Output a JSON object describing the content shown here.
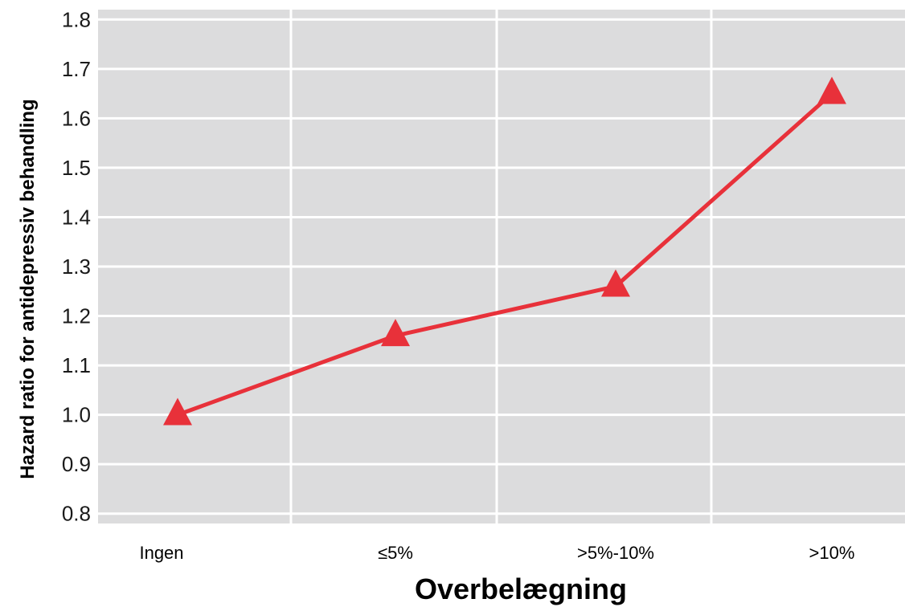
{
  "chart_data": {
    "type": "line",
    "title": "",
    "xlabel": "Overbelægning",
    "ylabel": "Hazard ratio for antidepressiv behandling",
    "categories": [
      "Ingen",
      "≤5%",
      ">5%-10%",
      ">10%"
    ],
    "series": [
      {
        "values": [
          1.0,
          1.16,
          1.26,
          1.65
        ],
        "color": "#e8313a",
        "marker": "triangle"
      }
    ],
    "ylim": [
      0.78,
      1.82
    ],
    "yticks": [
      "0.8",
      "0.9",
      "1.0",
      "1.1",
      "1.2",
      "1.3",
      "1.4",
      "1.5",
      "1.6",
      "1.7",
      "1.8"
    ],
    "grid": true,
    "legend": "none",
    "colors": {
      "plot_background": "#dcdcdd",
      "grid": "#ffffff",
      "line": "#e8313a"
    }
  }
}
